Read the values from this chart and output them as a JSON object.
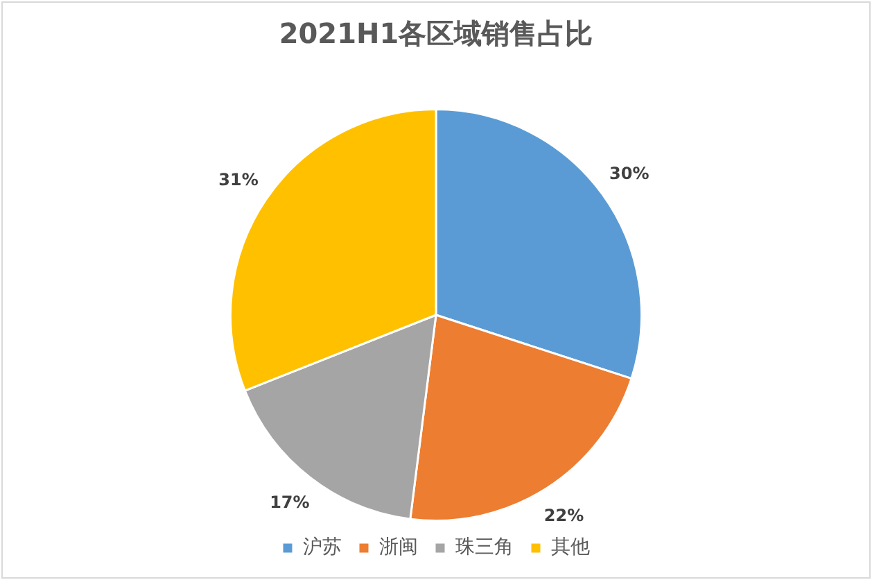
{
  "chart_data": {
    "type": "pie",
    "title": "2021H1各区域销售占比",
    "categories": [
      "沪苏",
      "浙闽",
      "珠三角",
      "其他"
    ],
    "values": [
      30,
      22,
      17,
      31
    ],
    "colors": [
      "#5b9bd5",
      "#ed7d31",
      "#a5a5a5",
      "#ffc000"
    ],
    "value_labels": [
      "30%",
      "22%",
      "17%",
      "31%"
    ],
    "legend": "bottom"
  }
}
